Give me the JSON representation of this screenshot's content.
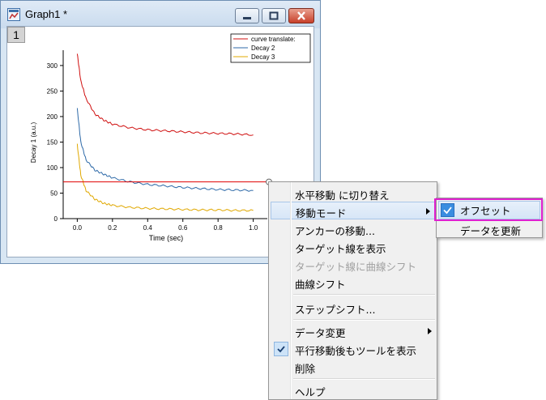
{
  "window": {
    "title": "Graph1 *",
    "layer_tab": "1"
  },
  "chart_data": {
    "type": "line",
    "xlabel": "Time (sec)",
    "ylabel": "Decay 1 (a.u.)",
    "xlim": [
      -0.08,
      1.08
    ],
    "ylim": [
      0,
      330
    ],
    "x_ticks": [
      "0.0",
      "0.2",
      "0.4",
      "0.6",
      "0.8",
      "1.0"
    ],
    "y_ticks": [
      "0",
      "50",
      "100",
      "150",
      "200",
      "250",
      "300"
    ],
    "series": [
      {
        "name": "curve translate:",
        "color": "#d01010",
        "x": [
          0.0,
          0.02,
          0.05,
          0.1,
          0.15,
          0.2,
          0.3,
          0.4,
          0.5,
          0.6,
          0.7,
          0.8,
          0.9,
          1.0
        ],
        "y": [
          323,
          270,
          235,
          205,
          193,
          185,
          178,
          174,
          172,
          170,
          168,
          167,
          166,
          164
        ]
      },
      {
        "name": "Decay 2",
        "color": "#2e6aa8",
        "x": [
          0.0,
          0.02,
          0.05,
          0.1,
          0.15,
          0.2,
          0.3,
          0.4,
          0.5,
          0.6,
          0.7,
          0.8,
          0.9,
          1.0
        ],
        "y": [
          215,
          150,
          115,
          95,
          87,
          80,
          72,
          67,
          64,
          61,
          59,
          57,
          56,
          55
        ]
      },
      {
        "name": "Decay 3",
        "color": "#e0a800",
        "x": [
          0.0,
          0.02,
          0.05,
          0.1,
          0.15,
          0.2,
          0.3,
          0.4,
          0.5,
          0.6,
          0.7,
          0.8,
          0.9,
          1.0
        ],
        "y": [
          145,
          85,
          55,
          38,
          30,
          26,
          22,
          20,
          19,
          18,
          17,
          17,
          16,
          16
        ]
      }
    ],
    "hline": {
      "y": 72,
      "color": "#e00000"
    },
    "legend_position": "top-right"
  },
  "context_menu": {
    "items": [
      {
        "label": "水平移動 に切り替え",
        "enabled": true
      },
      {
        "label": "移動モード",
        "enabled": true,
        "submenu": true
      },
      {
        "label": "アンカーの移動...",
        "enabled": true
      },
      {
        "label": "ターゲット線を表示",
        "enabled": true
      },
      {
        "label": "ターゲット線に曲線シフト",
        "enabled": false
      },
      {
        "label": "曲線シフト",
        "enabled": true
      },
      {
        "label": "ステップシフト...",
        "enabled": true
      },
      {
        "label": "データ変更",
        "enabled": true,
        "submenu": true
      },
      {
        "label": "平行移動後もツールを表示",
        "enabled": true,
        "checked": true
      },
      {
        "label": "削除",
        "enabled": true
      },
      {
        "label": "ヘルプ",
        "enabled": true
      }
    ]
  },
  "submenu": {
    "items": [
      {
        "label": "オフセット",
        "checked": true
      },
      {
        "label": "データを更新",
        "checked": false
      }
    ]
  }
}
